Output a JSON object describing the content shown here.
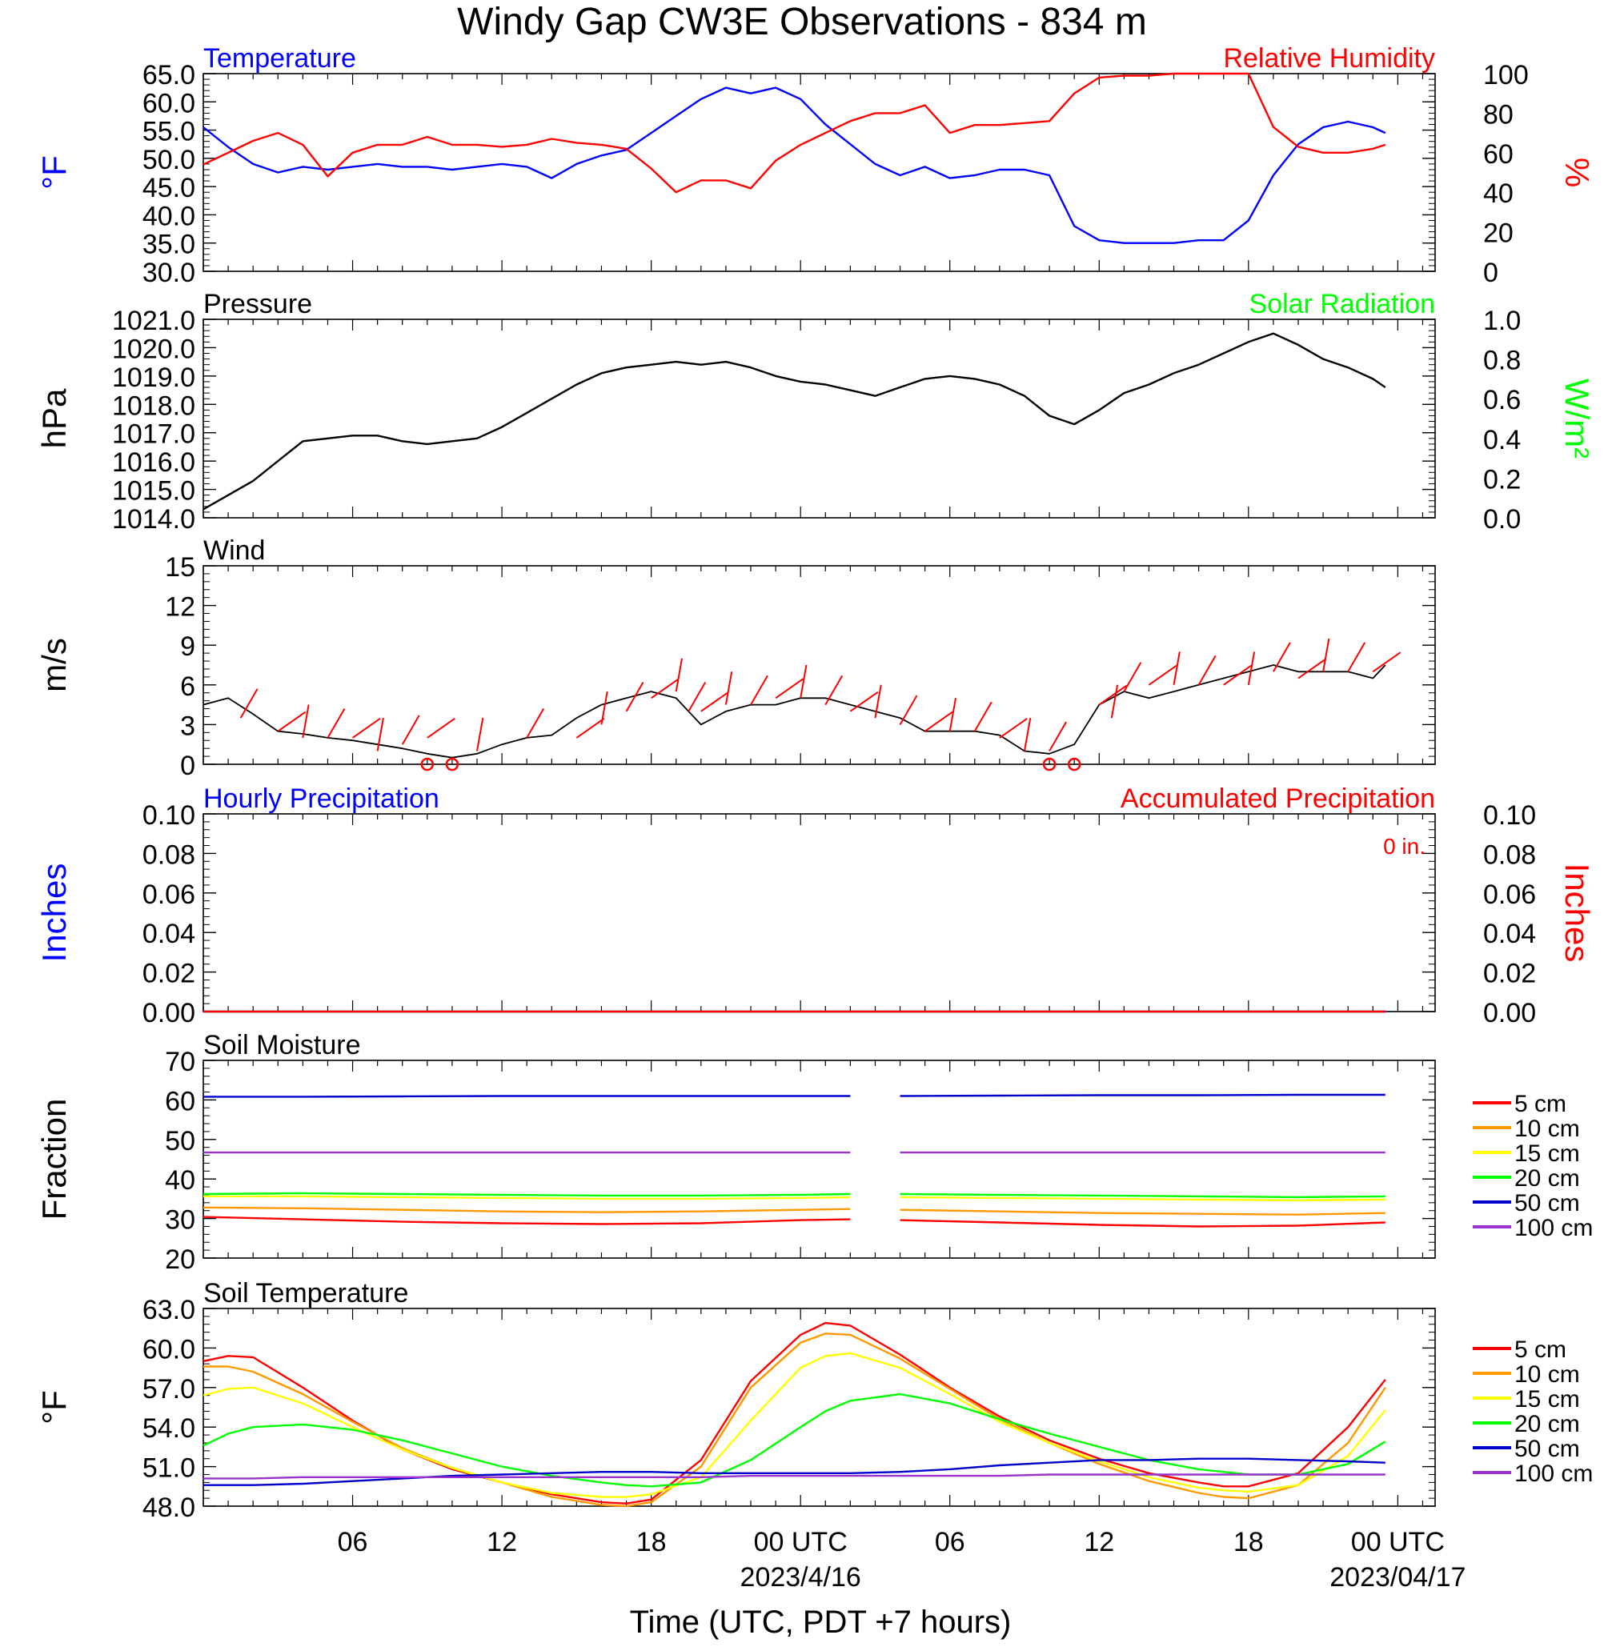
{
  "page": {
    "title": "Windy Gap CW3E Observations - 834 m",
    "xlabel": "Time (UTC, PDT +7 hours)",
    "x_tick_labels": [
      "06",
      "12",
      "18",
      "00 UTC",
      "06",
      "12",
      "18",
      "00 UTC"
    ],
    "date_labels": [
      "2023/4/16",
      "2023/04/17"
    ]
  },
  "colors": {
    "red": "#ff0000",
    "blue": "#0000ff",
    "green": "#00ff00",
    "orange": "#ff9900",
    "yellow": "#ffff00",
    "blue50": "#0000cc",
    "purple": "#9933cc",
    "black": "#000000"
  },
  "chart_data": [
    {
      "id": "temp_rh",
      "type": "line",
      "title_left": "Temperature",
      "title_right": "Relative Humidity",
      "ylabel_left": "°F",
      "ylabel_right": "%",
      "ylim_left": [
        30,
        65
      ],
      "ylim_right": [
        0,
        100
      ],
      "yticks_left": [
        "65.0",
        "60.0",
        "55.0",
        "50.0",
        "45.0",
        "40.0",
        "35.0",
        "30.0"
      ],
      "yticks_right": [
        "100",
        "80",
        "60",
        "40",
        "20",
        "0"
      ],
      "x_hours": [
        0,
        1,
        2,
        3,
        4,
        5,
        6,
        7,
        8,
        9,
        10,
        11,
        12,
        13,
        14,
        15,
        16,
        17,
        18,
        19,
        20,
        21,
        22,
        23,
        24,
        25,
        26,
        27,
        28,
        29,
        30,
        31,
        32,
        33,
        34,
        35,
        36,
        37,
        38,
        39,
        40,
        41,
        42,
        43,
        44,
        45,
        46,
        47,
        47.5
      ],
      "series": [
        {
          "name": "Temperature",
          "axis": "left",
          "color": "#0000ff",
          "values": [
            55.5,
            52.0,
            49.0,
            47.5,
            48.5,
            48.0,
            48.5,
            49.0,
            48.5,
            48.5,
            48.0,
            48.5,
            49.0,
            48.5,
            46.5,
            49.0,
            50.5,
            51.5,
            54.5,
            57.5,
            60.5,
            62.5,
            61.5,
            62.5,
            60.5,
            56.0,
            52.5,
            49.0,
            47.0,
            48.5,
            46.5,
            47.0,
            48.0,
            48.0,
            47.0,
            38.0,
            35.5,
            35.0,
            35.0,
            35.0,
            35.5,
            35.5,
            39.0,
            47.0,
            52.5,
            55.5,
            56.5,
            55.5,
            54.5
          ]
        },
        {
          "name": "Relative Humidity",
          "axis": "right",
          "color": "#ff0000",
          "values": [
            54,
            60,
            66,
            70,
            64,
            48,
            60,
            64,
            64,
            68,
            64,
            64,
            63,
            64,
            67,
            65,
            64,
            62,
            52,
            40,
            46,
            46,
            42,
            56,
            64,
            70,
            76,
            80,
            80,
            84,
            70,
            74,
            74,
            75,
            76,
            90,
            98,
            99,
            99,
            100,
            100,
            100,
            100,
            73,
            63,
            60,
            60,
            62,
            64
          ]
        }
      ]
    },
    {
      "id": "pressure_solar",
      "type": "line",
      "title_left": "Pressure",
      "title_right": "Solar Radiation",
      "ylabel_left": "hPa",
      "ylabel_right": "W/m²",
      "ylim_left": [
        1014,
        1021
      ],
      "ylim_right": [
        0,
        1
      ],
      "yticks_left": [
        "1021.0",
        "1020.0",
        "1019.0",
        "1018.0",
        "1017.0",
        "1016.0",
        "1015.0",
        "1014.0"
      ],
      "yticks_right": [
        "1.0",
        "0.8",
        "0.6",
        "0.4",
        "0.2",
        "0.0"
      ],
      "x_hours": [
        0,
        1,
        2,
        3,
        4,
        5,
        6,
        7,
        8,
        9,
        10,
        11,
        12,
        13,
        14,
        15,
        16,
        17,
        18,
        19,
        20,
        21,
        22,
        23,
        24,
        25,
        26,
        27,
        28,
        29,
        30,
        31,
        32,
        33,
        34,
        35,
        36,
        37,
        38,
        39,
        40,
        41,
        42,
        43,
        44,
        45,
        46,
        47,
        47.5
      ],
      "series": [
        {
          "name": "Pressure",
          "axis": "left",
          "color": "#000000",
          "values": [
            1014.3,
            1014.8,
            1015.3,
            1016.0,
            1016.7,
            1016.8,
            1016.9,
            1016.9,
            1016.7,
            1016.6,
            1016.7,
            1016.8,
            1017.2,
            1017.7,
            1018.2,
            1018.7,
            1019.1,
            1019.3,
            1019.4,
            1019.5,
            1019.4,
            1019.5,
            1019.3,
            1019.0,
            1018.8,
            1018.7,
            1018.5,
            1018.3,
            1018.6,
            1018.9,
            1019.0,
            1018.9,
            1018.7,
            1018.3,
            1017.6,
            1017.3,
            1017.8,
            1018.4,
            1018.7,
            1019.1,
            1019.4,
            1019.8,
            1020.2,
            1020.5,
            1020.1,
            1019.6,
            1019.3,
            1018.9,
            1018.6
          ]
        }
      ]
    },
    {
      "id": "wind",
      "type": "line",
      "title_left": "Wind",
      "ylabel_left": "m/s",
      "ylim_left": [
        0,
        15
      ],
      "yticks_left": [
        "15",
        "12",
        "9",
        "6",
        "3",
        "0"
      ],
      "x_hours": [
        0,
        1,
        2,
        3,
        4,
        5,
        6,
        7,
        8,
        9,
        10,
        11,
        12,
        13,
        14,
        15,
        16,
        17,
        18,
        19,
        20,
        21,
        22,
        23,
        24,
        25,
        26,
        27,
        28,
        29,
        30,
        31,
        32,
        33,
        34,
        35,
        36,
        37,
        38,
        39,
        40,
        41,
        42,
        43,
        44,
        45,
        46,
        47,
        47.5
      ],
      "series": [
        {
          "name": "Wind Speed",
          "axis": "left",
          "color": "#000000",
          "values": [
            4.5,
            5.0,
            3.8,
            2.5,
            2.3,
            2.0,
            1.8,
            1.5,
            1.2,
            0.8,
            0.5,
            0.8,
            1.5,
            2.0,
            2.2,
            3.5,
            4.5,
            5.0,
            5.5,
            5.0,
            3.0,
            4.0,
            4.5,
            4.5,
            5.0,
            5.0,
            4.5,
            4.0,
            3.5,
            2.5,
            2.5,
            2.5,
            2.2,
            1.0,
            0.8,
            1.5,
            4.5,
            5.5,
            5.0,
            5.5,
            6.0,
            6.5,
            7.0,
            7.5,
            7.0,
            7.0,
            7.0,
            6.5,
            7.5
          ]
        }
      ],
      "barb_hours": [
        1.5,
        3,
        4,
        5,
        6,
        7,
        8,
        9,
        11,
        13,
        15,
        16,
        17,
        18,
        19,
        19.5,
        20,
        21,
        22,
        23,
        24,
        25,
        26,
        27,
        28,
        29,
        30,
        31,
        32,
        33,
        34,
        36,
        36.5,
        37,
        38,
        39,
        40,
        41,
        42,
        43,
        44,
        45,
        46,
        47
      ],
      "barb_speeds": [
        3.5,
        2.5,
        2.0,
        2.0,
        2.0,
        1.0,
        1.5,
        2.0,
        1.0,
        2.0,
        2.0,
        3.0,
        4.0,
        5.0,
        5.5,
        4.0,
        4.0,
        4.5,
        4.5,
        5.0,
        5.0,
        4.5,
        4.0,
        3.5,
        3.0,
        2.5,
        2.5,
        2.5,
        2.0,
        1.0,
        1.0,
        4.5,
        3.5,
        5.5,
        6.0,
        6.0,
        6.0,
        6.0,
        6.0,
        7.0,
        6.5,
        7.0,
        7.0,
        7.0
      ],
      "calm_hours": [
        9,
        10,
        34,
        35
      ]
    },
    {
      "id": "precip",
      "type": "line",
      "title_left": "Hourly Precipitation",
      "title_right": "Accumulated Precipitation",
      "annotation": "0 in.",
      "ylabel_left": "Inches",
      "ylabel_right": "Inches",
      "ylim_left": [
        0,
        0.1
      ],
      "ylim_right": [
        0,
        0.1
      ],
      "yticks_left": [
        "0.10",
        "0.08",
        "0.06",
        "0.04",
        "0.02",
        "0.00"
      ],
      "yticks_right": [
        "0.10",
        "0.08",
        "0.06",
        "0.04",
        "0.02",
        "0.00"
      ],
      "x_hours": [
        0,
        47.5
      ],
      "series": [
        {
          "name": "Hourly Precipitation",
          "axis": "left",
          "color": "#0000ff",
          "values": [
            0,
            0
          ]
        },
        {
          "name": "Accumulated Precipitation",
          "axis": "right",
          "color": "#ff0000",
          "values": [
            0,
            0
          ]
        }
      ]
    },
    {
      "id": "soil_moisture",
      "type": "line",
      "title_left": "Soil Moisture",
      "ylabel_left": "Fraction",
      "ylim_left": [
        20,
        70
      ],
      "yticks_left": [
        "70",
        "60",
        "50",
        "40",
        "30",
        "20"
      ],
      "x_hours": [
        0,
        4,
        8,
        12,
        16,
        20,
        24,
        26,
        27,
        28,
        32,
        36,
        40,
        44,
        47.5
      ],
      "series": [
        {
          "name": "5 cm",
          "color": "#ff0000",
          "values": [
            30.4,
            29.8,
            29.2,
            28.8,
            28.6,
            28.8,
            29.6,
            29.8,
            null,
            29.6,
            29.0,
            28.4,
            28.0,
            28.2,
            29.0
          ]
        },
        {
          "name": "10 cm",
          "color": "#ff9900",
          "values": [
            32.8,
            32.6,
            32.2,
            31.8,
            31.6,
            31.8,
            32.2,
            32.4,
            null,
            32.2,
            31.8,
            31.4,
            31.2,
            31.0,
            31.4
          ]
        },
        {
          "name": "15 cm",
          "color": "#ffff00",
          "values": [
            35.6,
            35.6,
            35.4,
            35.2,
            35.0,
            35.0,
            35.2,
            35.4,
            null,
            35.4,
            35.2,
            35.0,
            34.8,
            34.6,
            34.8
          ]
        },
        {
          "name": "20 cm",
          "color": "#00ff00",
          "values": [
            36.2,
            36.4,
            36.2,
            36.0,
            35.8,
            35.8,
            36.0,
            36.2,
            null,
            36.2,
            36.0,
            35.8,
            35.6,
            35.4,
            35.6
          ]
        },
        {
          "name": "50 cm",
          "color": "#0000cc",
          "values": [
            60.8,
            60.8,
            60.9,
            61.0,
            61.0,
            61.0,
            61.0,
            61.0,
            null,
            61.0,
            61.1,
            61.2,
            61.2,
            61.3,
            61.3
          ]
        },
        {
          "name": "100 cm",
          "color": "#9933cc",
          "values": [
            46.7,
            46.7,
            46.7,
            46.7,
            46.7,
            46.7,
            46.7,
            46.7,
            null,
            46.7,
            46.7,
            46.7,
            46.7,
            46.7,
            46.7
          ]
        }
      ]
    },
    {
      "id": "soil_temp",
      "type": "line",
      "title_left": "Soil Temperature",
      "ylabel_left": "°F",
      "ylim_left": [
        48,
        63
      ],
      "yticks_left": [
        "63.0",
        "60.0",
        "57.0",
        "54.0",
        "51.0",
        "48.0"
      ],
      "x_hours": [
        0,
        1,
        2,
        4,
        6,
        8,
        10,
        12,
        14,
        16,
        17,
        18,
        20,
        22,
        24,
        25,
        26,
        28,
        30,
        32,
        34,
        36,
        38,
        40,
        41,
        42,
        44,
        46,
        47.5
      ],
      "series": [
        {
          "name": "5 cm",
          "color": "#ff0000",
          "values": [
            59.0,
            59.4,
            59.3,
            57.0,
            54.5,
            52.3,
            50.8,
            49.8,
            48.9,
            48.3,
            48.2,
            48.5,
            51.5,
            57.5,
            61.0,
            61.9,
            61.7,
            59.5,
            57.0,
            54.8,
            53.0,
            51.6,
            50.5,
            49.8,
            49.5,
            49.5,
            50.5,
            54.0,
            57.6
          ]
        },
        {
          "name": "10 cm",
          "color": "#ff9900",
          "values": [
            58.6,
            58.6,
            58.2,
            56.5,
            54.4,
            52.4,
            50.9,
            49.8,
            48.7,
            48.1,
            48.0,
            48.3,
            51.0,
            57.0,
            60.4,
            61.1,
            61.0,
            59.2,
            56.9,
            54.6,
            52.8,
            51.2,
            49.9,
            49.0,
            48.7,
            48.6,
            49.6,
            52.8,
            57.0
          ]
        },
        {
          "name": "15 cm",
          "color": "#ffff00",
          "values": [
            56.4,
            56.9,
            57.0,
            55.8,
            54.0,
            52.3,
            50.9,
            49.8,
            49.0,
            48.7,
            48.7,
            48.9,
            50.2,
            54.5,
            58.5,
            59.4,
            59.6,
            58.5,
            56.5,
            54.4,
            52.8,
            51.4,
            50.2,
            49.4,
            49.2,
            49.1,
            49.6,
            51.8,
            55.3
          ]
        },
        {
          "name": "20 cm",
          "color": "#00ff00",
          "values": [
            52.6,
            53.5,
            54.0,
            54.2,
            53.8,
            53.0,
            52.0,
            51.0,
            50.3,
            49.8,
            49.6,
            49.5,
            49.8,
            51.5,
            54.0,
            55.2,
            56.0,
            56.5,
            55.8,
            54.6,
            53.5,
            52.5,
            51.5,
            50.8,
            50.6,
            50.4,
            50.4,
            51.2,
            52.9
          ]
        },
        {
          "name": "50 cm",
          "color": "#0000cc",
          "values": [
            49.6,
            49.6,
            49.6,
            49.7,
            49.9,
            50.1,
            50.3,
            50.4,
            50.5,
            50.6,
            50.6,
            50.6,
            50.5,
            50.5,
            50.5,
            50.5,
            50.5,
            50.6,
            50.8,
            51.1,
            51.3,
            51.5,
            51.5,
            51.6,
            51.6,
            51.6,
            51.5,
            51.4,
            51.3
          ]
        },
        {
          "name": "100 cm",
          "color": "#9933cc",
          "values": [
            50.1,
            50.1,
            50.1,
            50.2,
            50.2,
            50.2,
            50.2,
            50.2,
            50.2,
            50.2,
            50.2,
            50.2,
            50.2,
            50.3,
            50.3,
            50.3,
            50.3,
            50.3,
            50.3,
            50.3,
            50.4,
            50.4,
            50.4,
            50.4,
            50.4,
            50.4,
            50.4,
            50.4,
            50.4
          ]
        }
      ]
    }
  ]
}
